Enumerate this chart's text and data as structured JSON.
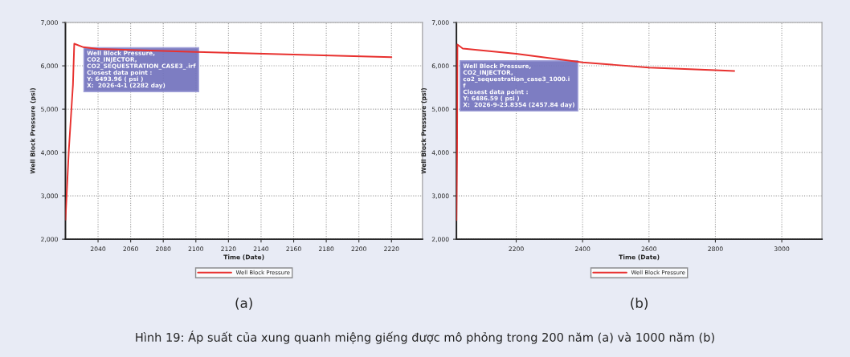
{
  "chart_data": [
    {
      "type": "line",
      "xlabel": "Time (Date)",
      "ylabel": "Well Block Pressure (psi)",
      "series": [
        {
          "name": "Well Block Pressure",
          "color": "#e8312f",
          "x": [
            2020,
            2022.1,
            2024.6,
            2025.4,
            2031,
            2040,
            2100,
            2160,
            2220
          ],
          "values": [
            2450,
            4070,
            5560,
            6510,
            6430,
            6390,
            6320,
            6260,
            6200
          ]
        }
      ],
      "xlim": [
        2020,
        2239
      ],
      "xticks": [
        2040,
        2060,
        2080,
        2100,
        2120,
        2140,
        2160,
        2180,
        2200,
        2220
      ],
      "ylim": [
        2000,
        7000
      ],
      "yticks": [
        {
          "value": 2000,
          "label": "2,000"
        },
        {
          "value": 3000,
          "label": "3,000"
        },
        {
          "value": 4000,
          "label": "4,000"
        },
        {
          "value": 5000,
          "label": "5,000"
        },
        {
          "value": 6000,
          "label": "6,000"
        },
        {
          "value": 7000,
          "label": "7,000"
        }
      ],
      "grid": true,
      "legend": "bottom",
      "line_style": "solid",
      "annotations": [
        "Well Block Pressure,\nCO2_INJECTOR,\nCO2_SEQUESTRATION_CASE3_.irf\nClosest data point :\nY: 6493.96 ( psi )\nX:  2026-4-1 (2282 day)",
        "(a)"
      ]
    },
    {
      "type": "line",
      "xlabel": "Time (Date)",
      "ylabel": "Well Block Pressure (psi)",
      "series": [
        {
          "name": "Well Block Pressure",
          "color": "#e8312f",
          "x": [
            2020,
            2022,
            2023,
            2039,
            2200,
            2400,
            2600,
            2800,
            2857
          ],
          "values": [
            2440,
            4100,
            6490,
            6400,
            6280,
            6080,
            5960,
            5900,
            5880
          ]
        }
      ],
      "xlim": [
        2020,
        3121
      ],
      "xticks": [
        2200,
        2400,
        2600,
        2800,
        3000
      ],
      "ylim": [
        2000,
        7000
      ],
      "yticks": [
        {
          "value": 2000,
          "label": "2,000"
        },
        {
          "value": 3000,
          "label": "3,000"
        },
        {
          "value": 4000,
          "label": "4,000"
        },
        {
          "value": 5000,
          "label": "5,000"
        },
        {
          "value": 6000,
          "label": "6,000"
        },
        {
          "value": 7000,
          "label": "7,000"
        }
      ],
      "grid": true,
      "legend": "bottom",
      "line_style": "solid",
      "annotations": [
        "Well Block Pressure,\nCO2_INJECTOR,\nco2_sequestration_case3_1000.i\nf\nClosest data point :\nY: 6486.59 ( psi )\nX:  2026-9-23.8354 (2457.84 day)",
        "(b)",
        "Hình 19: Áp suất của xung quanh miệng giếng được mô phỏng trong 200 năm (a) và 1000 năm (b)"
      ]
    }
  ]
}
